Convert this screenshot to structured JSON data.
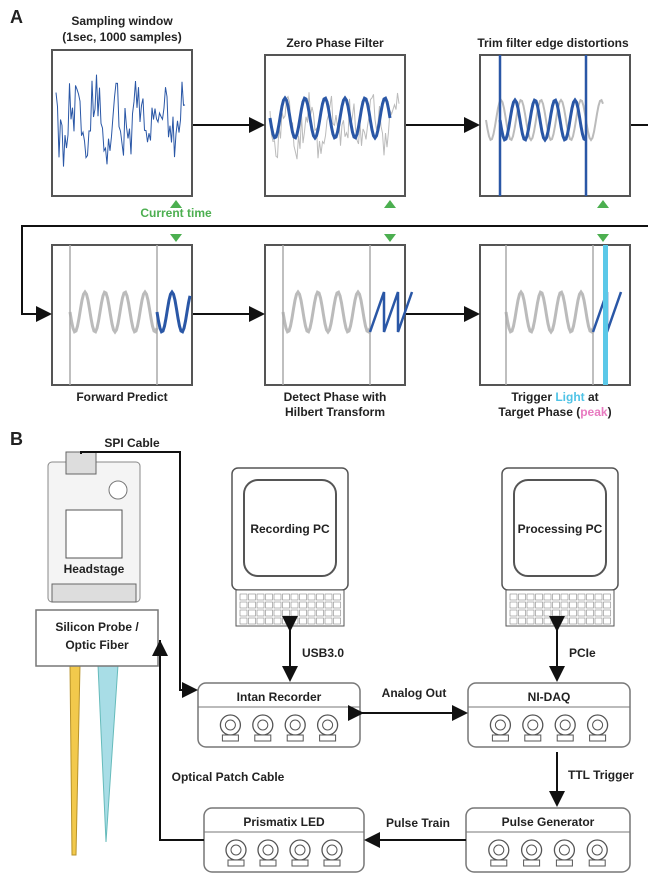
{
  "panel_a": {
    "label": "A",
    "steps": [
      {
        "title": [
          "Sampling window",
          "(1sec, 1000 samples)"
        ]
      },
      {
        "title": [
          "Zero Phase Filter"
        ]
      },
      {
        "title": [
          "Trim filter edge distortions"
        ]
      },
      {
        "title": [
          "Forward Predict"
        ]
      },
      {
        "title": [
          "Detect Phase with",
          "Hilbert Transform"
        ]
      },
      {
        "title_parts": [
          [
            "Trigger ",
            "Light",
            " at"
          ],
          [
            "Target Phase (",
            "peak",
            ")"
          ]
        ]
      }
    ],
    "current_time": "Current time"
  },
  "panel_b": {
    "label": "B",
    "devices": {
      "recording_pc": "Recording PC",
      "processing_pc": "Processing PC",
      "headstage": "Headstage",
      "probe": [
        "Silicon Probe /",
        "Optic Fiber"
      ],
      "intan": "Intan Recorder",
      "nidaq": "NI-DAQ",
      "led": "Prismatix LED",
      "pulse_generator": "Pulse Generator"
    },
    "connections": {
      "spi": "SPI Cable",
      "usb": "USB3.0",
      "pcie": "PCIe",
      "analog": "Analog Out",
      "ttl": "TTL Trigger",
      "pulse_train": "Pulse Train",
      "patch": "Optical Patch Cable"
    }
  }
}
